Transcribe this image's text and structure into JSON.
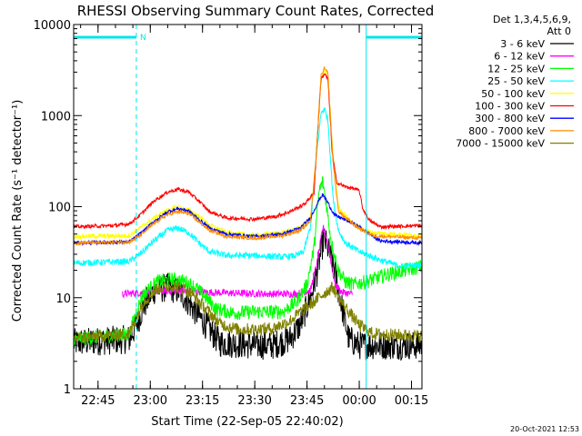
{
  "chart_data": {
    "type": "line",
    "title": "RHESSI Observing Summary Count Rates, Corrected",
    "xlabel": "Start Time (22-Sep-05 22:40:02)",
    "ylabel": "Corrected Count Rate (s⁻¹ detector⁻¹)",
    "yscale": "log",
    "ylim": [
      1,
      10000
    ],
    "xlim_minutes": [
      -2,
      98
    ],
    "y_ticks": [
      {
        "value": 1,
        "label": "1"
      },
      {
        "value": 10,
        "label": "10"
      },
      {
        "value": 100,
        "label": "100"
      },
      {
        "value": 1000,
        "label": "1000"
      },
      {
        "value": 10000,
        "label": "10000"
      }
    ],
    "x_ticks": [
      {
        "minute": 5,
        "label": "22:45"
      },
      {
        "minute": 20,
        "label": "23:00"
      },
      {
        "minute": 35,
        "label": "23:15"
      },
      {
        "minute": 50,
        "label": "23:30"
      },
      {
        "minute": 65,
        "label": "23:45"
      },
      {
        "minute": 80,
        "label": "00:00"
      },
      {
        "minute": 95,
        "label": "00:15"
      }
    ],
    "legend_header": [
      "Det 1,3,4,5,6,9,",
      "Att 0"
    ],
    "night_marker": "N",
    "attenuator_state_segments": [
      [
        -2,
        16
      ],
      [
        82,
        98
      ]
    ],
    "vertical_markers": {
      "solid": [
        -2,
        82
      ],
      "dashed": [
        16,
        98
      ]
    },
    "series": [
      {
        "name": "3 - 6 keV",
        "color": "#000000",
        "noise": 0.16,
        "points": [
          [
            -2,
            3.2
          ],
          [
            14,
            3.5
          ],
          [
            16,
            5
          ],
          [
            18,
            8
          ],
          [
            21,
            12
          ],
          [
            25,
            13
          ],
          [
            28,
            12
          ],
          [
            30,
            10
          ],
          [
            33,
            7
          ],
          [
            36,
            5
          ],
          [
            40,
            3.2
          ],
          [
            50,
            3
          ],
          [
            55,
            3
          ],
          [
            60,
            3.5
          ],
          [
            63,
            5
          ],
          [
            66,
            10
          ],
          [
            68,
            20
          ],
          [
            69.8,
            45
          ],
          [
            71,
            35
          ],
          [
            73,
            20
          ],
          [
            75,
            8
          ],
          [
            77,
            3.5
          ],
          [
            80,
            3
          ],
          [
            98,
            3
          ]
        ]
      },
      {
        "name": "6 - 12 keV",
        "color": "#ff00ff",
        "noise": 0.04,
        "points": [
          [
            12,
            11
          ],
          [
            20,
            11.5
          ],
          [
            28,
            12
          ],
          [
            36,
            11.5
          ],
          [
            45,
            11.2
          ],
          [
            55,
            11
          ],
          [
            62,
            11
          ],
          [
            66,
            12
          ],
          [
            68,
            25
          ],
          [
            69.6,
            60
          ],
          [
            71,
            40
          ],
          [
            73,
            14
          ],
          [
            75,
            11.5
          ],
          [
            78,
            11
          ]
        ]
      },
      {
        "name": "12 - 25 keV",
        "color": "#00ff00",
        "noise": 0.08,
        "points": [
          [
            -2,
            3.5
          ],
          [
            14,
            4
          ],
          [
            16,
            7
          ],
          [
            18,
            11
          ],
          [
            22,
            15
          ],
          [
            26,
            16
          ],
          [
            30,
            15
          ],
          [
            33,
            13
          ],
          [
            36,
            10
          ],
          [
            39,
            7.5
          ],
          [
            44,
            6.8
          ],
          [
            50,
            7
          ],
          [
            58,
            7
          ],
          [
            62,
            9
          ],
          [
            65,
            14
          ],
          [
            67,
            35
          ],
          [
            68.5,
            150
          ],
          [
            69.5,
            190
          ],
          [
            70.5,
            110
          ],
          [
            72,
            40
          ],
          [
            74,
            20
          ],
          [
            76,
            15
          ],
          [
            78,
            14
          ],
          [
            82,
            15
          ],
          [
            88,
            18
          ],
          [
            98,
            22
          ]
        ]
      },
      {
        "name": "25 - 50 keV",
        "color": "#00ffff",
        "noise": 0.035,
        "points": [
          [
            -2,
            24
          ],
          [
            14,
            25
          ],
          [
            17,
            30
          ],
          [
            21,
            42
          ],
          [
            25,
            55
          ],
          [
            28,
            58
          ],
          [
            31,
            52
          ],
          [
            34,
            40
          ],
          [
            37,
            32
          ],
          [
            42,
            29
          ],
          [
            50,
            29
          ],
          [
            58,
            28
          ],
          [
            62,
            29
          ],
          [
            64,
            32
          ],
          [
            66,
            60
          ],
          [
            67.5,
            300
          ],
          [
            69,
            1050
          ],
          [
            70,
            1200
          ],
          [
            71,
            900
          ],
          [
            72.5,
            120
          ],
          [
            74,
            55
          ],
          [
            76,
            40
          ],
          [
            80,
            32
          ],
          [
            86,
            26
          ],
          [
            92,
            22
          ],
          [
            98,
            23
          ]
        ]
      },
      {
        "name": "50 - 100 keV",
        "color": "#ffff00",
        "noise": 0.025,
        "points": [
          [
            -2,
            47
          ],
          [
            14,
            48
          ],
          [
            17,
            58
          ],
          [
            21,
            75
          ],
          [
            25,
            92
          ],
          [
            28,
            98
          ],
          [
            31,
            92
          ],
          [
            34,
            78
          ],
          [
            37,
            63
          ],
          [
            42,
            52
          ],
          [
            50,
            48
          ],
          [
            58,
            52
          ],
          [
            63,
            58
          ],
          [
            66,
            75
          ],
          [
            67.5,
            300
          ],
          [
            69,
            2500
          ],
          [
            70,
            3100
          ],
          [
            71,
            2800
          ],
          [
            72.5,
            350
          ],
          [
            74,
            100
          ],
          [
            76,
            80
          ],
          [
            79,
            62
          ],
          [
            83,
            52
          ],
          [
            98,
            48
          ]
        ]
      },
      {
        "name": "100 - 300 keV",
        "color": "#ff0000",
        "noise": 0.02,
        "points": [
          [
            -2,
            60
          ],
          [
            10,
            62
          ],
          [
            14,
            65
          ],
          [
            17,
            80
          ],
          [
            21,
            115
          ],
          [
            25,
            145
          ],
          [
            28,
            155
          ],
          [
            31,
            145
          ],
          [
            34,
            115
          ],
          [
            37,
            88
          ],
          [
            42,
            75
          ],
          [
            50,
            73
          ],
          [
            56,
            78
          ],
          [
            60,
            88
          ],
          [
            64,
            105
          ],
          [
            67,
            140
          ],
          [
            68,
            600
          ],
          [
            69,
            2500
          ],
          [
            70,
            2900
          ],
          [
            71,
            2500
          ],
          [
            72.2,
            400
          ],
          [
            73.5,
            185
          ],
          [
            76,
            165
          ],
          [
            78,
            160
          ],
          [
            80,
            150
          ],
          [
            81,
            95
          ],
          [
            83,
            70
          ],
          [
            86,
            60
          ],
          [
            98,
            62
          ]
        ]
      },
      {
        "name": "300 - 800 keV",
        "color": "#0000ff",
        "noise": 0.02,
        "points": [
          [
            -2,
            40
          ],
          [
            14,
            41
          ],
          [
            17,
            50
          ],
          [
            21,
            68
          ],
          [
            25,
            88
          ],
          [
            28,
            95
          ],
          [
            31,
            90
          ],
          [
            34,
            72
          ],
          [
            37,
            58
          ],
          [
            42,
            50
          ],
          [
            50,
            47
          ],
          [
            58,
            50
          ],
          [
            63,
            58
          ],
          [
            66,
            75
          ],
          [
            68.5,
            120
          ],
          [
            69.5,
            135
          ],
          [
            71,
            110
          ],
          [
            73,
            80
          ],
          [
            76,
            72
          ],
          [
            80,
            60
          ],
          [
            83,
            50
          ],
          [
            86,
            42
          ],
          [
            98,
            40
          ]
        ]
      },
      {
        "name": "800 - 7000 keV",
        "color": "#ff8c00",
        "noise": 0.02,
        "points": [
          [
            -2,
            40
          ],
          [
            14,
            41
          ],
          [
            17,
            48
          ],
          [
            21,
            65
          ],
          [
            25,
            82
          ],
          [
            28,
            88
          ],
          [
            31,
            84
          ],
          [
            34,
            68
          ],
          [
            37,
            55
          ],
          [
            42,
            47
          ],
          [
            50,
            45
          ],
          [
            58,
            48
          ],
          [
            63,
            55
          ],
          [
            66,
            70
          ],
          [
            67.5,
            300
          ],
          [
            69,
            2700
          ],
          [
            70,
            3300
          ],
          [
            71,
            2900
          ],
          [
            72.5,
            300
          ],
          [
            74,
            90
          ],
          [
            76,
            75
          ],
          [
            80,
            58
          ],
          [
            84,
            48
          ],
          [
            98,
            45
          ]
        ]
      },
      {
        "name": "7000 - 15000 keV",
        "color": "#808000",
        "noise": 0.07,
        "points": [
          [
            -2,
            3.6
          ],
          [
            14,
            4
          ],
          [
            16,
            6
          ],
          [
            18,
            9
          ],
          [
            22,
            12.5
          ],
          [
            26,
            13.5
          ],
          [
            30,
            12.5
          ],
          [
            33,
            10
          ],
          [
            36,
            7.5
          ],
          [
            40,
            5.2
          ],
          [
            45,
            4.5
          ],
          [
            50,
            4.5
          ],
          [
            55,
            4.6
          ],
          [
            60,
            5.5
          ],
          [
            64,
            7.5
          ],
          [
            67,
            9
          ],
          [
            69,
            10.5
          ],
          [
            71,
            12
          ],
          [
            72.5,
            13
          ],
          [
            74,
            10
          ],
          [
            77,
            7
          ],
          [
            80,
            5
          ],
          [
            84,
            4
          ],
          [
            98,
            3.8
          ]
        ]
      }
    ]
  },
  "timestamp": "20-Oct-2021 12:53"
}
